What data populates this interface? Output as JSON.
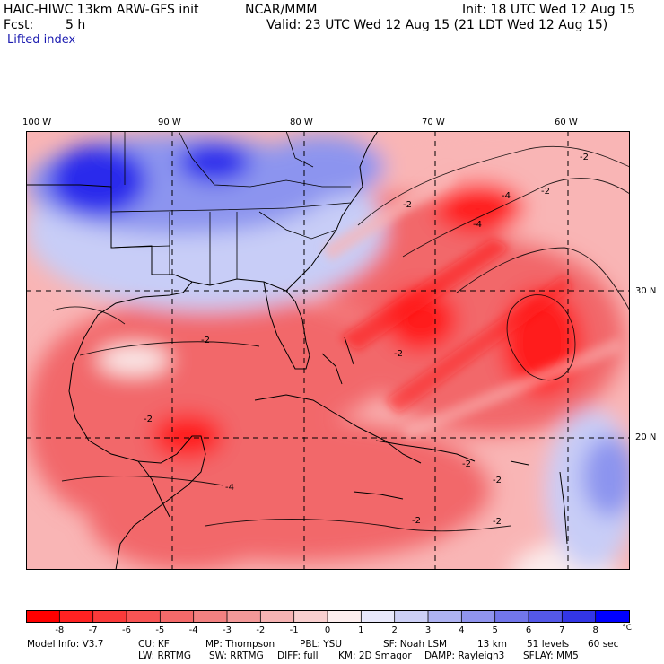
{
  "header": {
    "model": "HAIC-HIWC 13km ARW-GFS init",
    "org": "NCAR/MMM",
    "init": "Init: 18 UTC Wed 12 Aug 15",
    "fcst_label": "Fcst:",
    "fcst_value": "5 h",
    "valid": "Valid: 23 UTC Wed 12 Aug 15 (21 LDT Wed 12 Aug 15)",
    "field": "Lifted index"
  },
  "map": {
    "lon_labels": [
      "100 W",
      "90 W",
      "80 W",
      "70 W",
      "60 W"
    ],
    "lat_labels": [
      "30 N",
      "20 N"
    ],
    "contour_labels": [
      "-2",
      "-4"
    ],
    "colors": {
      "neg_strong": "#ff1a1a",
      "neg_mid": "#f2686b",
      "neg_light": "#f9b5b5",
      "neutral": "#fbecec",
      "pos_light": "#c8cdf7",
      "pos_mid": "#8c94ef",
      "pos_strong": "#2b2bec"
    }
  },
  "legend": {
    "ticks": [
      "-8",
      "-7",
      "-6",
      "-5",
      "-4",
      "-3",
      "-2",
      "-1",
      "0",
      "1",
      "2",
      "3",
      "4",
      "5",
      "6",
      "7",
      "8"
    ],
    "unit": "°C",
    "colors": [
      "#ff0000",
      "#ff2222",
      "#fb3a3a",
      "#f85454",
      "#f46a6a",
      "#f28181",
      "#f39999",
      "#f6b3b3",
      "#f9cfcf",
      "#fdeeee",
      "#e8e8fb",
      "#cdd0f6",
      "#aeb2f1",
      "#9094ee",
      "#7276ea",
      "#5458e8",
      "#3336e6",
      "#0000ff"
    ]
  },
  "footer": {
    "line1": [
      "Model Info: V3.7",
      "CU: KF",
      "MP: Thompson",
      "PBL: YSU",
      "SF: Noah LSM",
      "13 km",
      "51 levels",
      "60 sec"
    ],
    "line2": [
      "LW: RRTMG",
      "SW: RRTMG",
      "DIFF: full",
      "KM: 2D Smagor",
      "DAMP: Rayleigh3",
      "SFLAY: MM5"
    ]
  }
}
